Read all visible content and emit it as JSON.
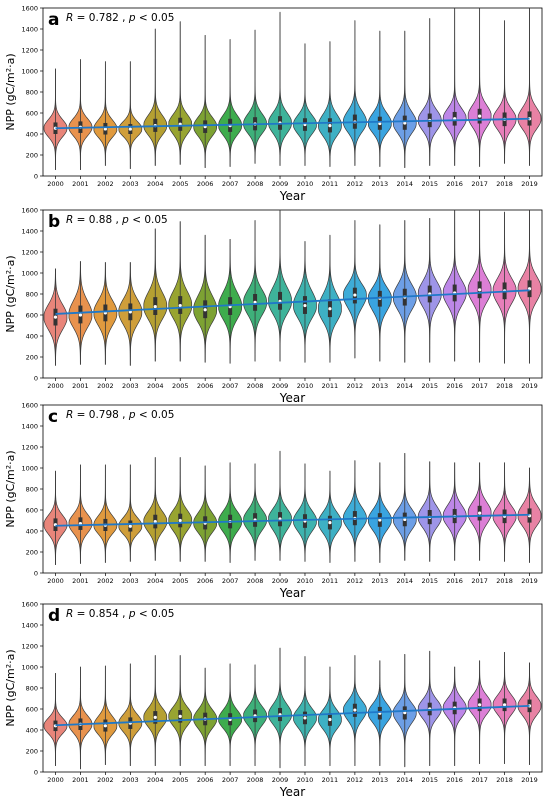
{
  "chart_data": [
    {
      "type": "violin",
      "panel_label": "a",
      "stat": {
        "r_prefix": "R",
        "r_value": "= 0.782 ,",
        "p_prefix": "p",
        "p_value": "< 0.05"
      },
      "xlabel": "Year",
      "ylabel": "NPP (gC/m²·a)",
      "ylim": [
        0,
        1600
      ],
      "yticks": [
        0,
        200,
        400,
        600,
        800,
        1000,
        1200,
        1400,
        1600
      ],
      "categories": [
        "2000",
        "2001",
        "2002",
        "2003",
        "2004",
        "2005",
        "2006",
        "2007",
        "2008",
        "2009",
        "2010",
        "2011",
        "2012",
        "2013",
        "2014",
        "2015",
        "2016",
        "2017",
        "2018",
        "2019"
      ],
      "colors": [
        "#e8857a",
        "#e8924e",
        "#e09a3e",
        "#cf9e3a",
        "#b5a032",
        "#98a431",
        "#7da233",
        "#3eac4d",
        "#3eb07a",
        "#3eb39a",
        "#3eb3af",
        "#3eb0c4",
        "#3eacd8",
        "#3aa4e0",
        "#6d9fe6",
        "#9e95e8",
        "#bd87e8",
        "#dc7fd6",
        "#e77fba",
        "#e882a4"
      ],
      "medians": [
        455,
        465,
        448,
        447,
        480,
        493,
        470,
        480,
        495,
        505,
        490,
        480,
        515,
        500,
        505,
        530,
        545,
        570,
        540,
        545
      ],
      "q1": [
        400,
        410,
        395,
        400,
        420,
        430,
        410,
        420,
        435,
        440,
        430,
        415,
        450,
        440,
        440,
        465,
        480,
        500,
        475,
        480
      ],
      "q3": [
        510,
        520,
        505,
        495,
        545,
        555,
        530,
        545,
        560,
        570,
        550,
        550,
        585,
        565,
        575,
        595,
        610,
        640,
        605,
        615
      ],
      "mins": [
        60,
        60,
        100,
        70,
        100,
        110,
        80,
        90,
        120,
        100,
        100,
        90,
        100,
        90,
        80,
        100,
        100,
        90,
        120,
        100
      ],
      "maxs": [
        1020,
        1110,
        1090,
        1090,
        1400,
        1470,
        1340,
        1300,
        1390,
        1560,
        1260,
        1280,
        1480,
        1380,
        1380,
        1500,
        1600,
        1600,
        1480,
        1600
      ],
      "trend": {
        "start": 455,
        "end": 545
      }
    },
    {
      "type": "violin",
      "panel_label": "b",
      "stat": {
        "r_prefix": "R",
        "r_value": "= 0.88 ,",
        "p_prefix": "p",
        "p_value": "< 0.05"
      },
      "xlabel": "Year",
      "ylabel": "NPP (gC/m²·a)",
      "ylim": [
        0,
        1600
      ],
      "yticks": [
        0,
        200,
        400,
        600,
        800,
        1000,
        1200,
        1400,
        1600
      ],
      "categories": [
        "2000",
        "2001",
        "2002",
        "2003",
        "2004",
        "2005",
        "2006",
        "2007",
        "2008",
        "2009",
        "2010",
        "2011",
        "2012",
        "2013",
        "2014",
        "2015",
        "2016",
        "2017",
        "2018",
        "2019"
      ],
      "colors": [
        "#e8857a",
        "#e8924e",
        "#e09a3e",
        "#cf9e3a",
        "#b5a032",
        "#98a431",
        "#7da233",
        "#3eac4d",
        "#3eb07a",
        "#3eb39a",
        "#3eb3af",
        "#3eb0c4",
        "#3eacd8",
        "#3aa4e0",
        "#6d9fe6",
        "#9e95e8",
        "#bd87e8",
        "#dc7fd6",
        "#e77fba",
        "#e882a4"
      ],
      "medians": [
        580,
        600,
        620,
        630,
        680,
        690,
        650,
        680,
        720,
        730,
        690,
        660,
        790,
        760,
        770,
        800,
        810,
        840,
        830,
        850
      ],
      "q1": [
        500,
        520,
        540,
        550,
        600,
        610,
        570,
        600,
        640,
        650,
        610,
        580,
        710,
        680,
        690,
        720,
        730,
        760,
        750,
        770
      ],
      "q3": [
        660,
        690,
        700,
        710,
        770,
        780,
        740,
        770,
        800,
        820,
        780,
        750,
        860,
        830,
        850,
        880,
        890,
        920,
        910,
        930
      ],
      "mins": [
        120,
        130,
        130,
        120,
        160,
        160,
        150,
        140,
        160,
        160,
        150,
        150,
        190,
        160,
        150,
        150,
        160,
        150,
        140,
        140
      ],
      "maxs": [
        1040,
        1110,
        1100,
        1100,
        1420,
        1490,
        1360,
        1320,
        1500,
        1600,
        1300,
        1360,
        1500,
        1460,
        1500,
        1520,
        1600,
        1600,
        1580,
        1600
      ],
      "trend": {
        "start": 610,
        "end": 835
      }
    },
    {
      "type": "violin",
      "panel_label": "c",
      "stat": {
        "r_prefix": "R",
        "r_value": "= 0.798 ,",
        "p_prefix": "p",
        "p_value": "< 0.05"
      },
      "xlabel": "Year",
      "ylabel": "NPP (gC/m²·a)",
      "ylim": [
        0,
        1600
      ],
      "yticks": [
        0,
        200,
        400,
        600,
        800,
        1000,
        1200,
        1400,
        1600
      ],
      "categories": [
        "2000",
        "2001",
        "2002",
        "2003",
        "2004",
        "2005",
        "2006",
        "2007",
        "2008",
        "2009",
        "2010",
        "2011",
        "2012",
        "2013",
        "2014",
        "2015",
        "2016",
        "2017",
        "2018",
        "2019"
      ],
      "colors": [
        "#e8857a",
        "#e8924e",
        "#e09a3e",
        "#cf9e3a",
        "#b5a032",
        "#98a431",
        "#7da233",
        "#3eac4d",
        "#3eb07a",
        "#3eb39a",
        "#3eb3af",
        "#3eb0c4",
        "#3eacd8",
        "#3aa4e0",
        "#6d9fe6",
        "#9e95e8",
        "#bd87e8",
        "#dc7fd6",
        "#e77fba",
        "#e882a4"
      ],
      "medians": [
        460,
        470,
        455,
        445,
        490,
        500,
        475,
        490,
        505,
        515,
        495,
        480,
        520,
        505,
        510,
        530,
        540,
        570,
        540,
        545
      ],
      "q1": [
        400,
        410,
        400,
        395,
        425,
        435,
        415,
        425,
        440,
        445,
        430,
        415,
        455,
        440,
        445,
        465,
        475,
        500,
        475,
        480
      ],
      "q3": [
        520,
        530,
        515,
        500,
        555,
        565,
        540,
        555,
        570,
        580,
        560,
        545,
        590,
        570,
        575,
        600,
        610,
        640,
        605,
        615
      ],
      "mins": [
        80,
        90,
        100,
        110,
        120,
        110,
        110,
        100,
        120,
        120,
        110,
        100,
        110,
        100,
        120,
        110,
        120,
        120,
        110,
        100
      ],
      "maxs": [
        970,
        1030,
        1030,
        1030,
        1100,
        1100,
        1020,
        1050,
        1040,
        1160,
        1040,
        970,
        1070,
        1050,
        1140,
        1060,
        1050,
        1050,
        1050,
        1000
      ],
      "trend": {
        "start": 450,
        "end": 555
      }
    },
    {
      "type": "violin",
      "panel_label": "d",
      "stat": {
        "r_prefix": "R",
        "r_value": "= 0.854 ,",
        "p_prefix": "p",
        "p_value": "< 0.05"
      },
      "xlabel": "Year",
      "ylabel": "NPP (gC/m²·a)",
      "ylim": [
        0,
        1600
      ],
      "yticks": [
        0,
        200,
        400,
        600,
        800,
        1000,
        1200,
        1400,
        1600
      ],
      "categories": [
        "2000",
        "2001",
        "2002",
        "2003",
        "2004",
        "2005",
        "2006",
        "2007",
        "2008",
        "2009",
        "2010",
        "2011",
        "2012",
        "2013",
        "2014",
        "2015",
        "2016",
        "2017",
        "2018",
        "2019"
      ],
      "colors": [
        "#e8857a",
        "#e8924e",
        "#e09a3e",
        "#cf9e3a",
        "#b5a032",
        "#98a431",
        "#7da233",
        "#3eac4d",
        "#3eb07a",
        "#3eb39a",
        "#3eb3af",
        "#3eb0c4",
        "#3eacd8",
        "#3aa4e0",
        "#6d9fe6",
        "#9e95e8",
        "#bd87e8",
        "#dc7fd6",
        "#e77fba",
        "#e882a4"
      ],
      "medians": [
        440,
        455,
        440,
        465,
        520,
        530,
        505,
        500,
        535,
        545,
        515,
        500,
        590,
        560,
        565,
        600,
        610,
        640,
        640,
        630
      ],
      "q1": [
        390,
        400,
        385,
        410,
        460,
        470,
        445,
        445,
        475,
        485,
        455,
        440,
        525,
        500,
        500,
        540,
        550,
        580,
        580,
        570
      ],
      "q3": [
        490,
        510,
        500,
        520,
        580,
        590,
        565,
        560,
        595,
        610,
        575,
        560,
        650,
        620,
        625,
        660,
        670,
        700,
        700,
        690
      ],
      "mins": [
        60,
        30,
        70,
        60,
        60,
        60,
        60,
        60,
        60,
        40,
        60,
        60,
        60,
        60,
        50,
        60,
        60,
        80,
        80,
        70
      ],
      "maxs": [
        940,
        1000,
        1010,
        1030,
        1110,
        1110,
        990,
        1030,
        1020,
        1180,
        1100,
        1000,
        1110,
        1060,
        1120,
        1150,
        1000,
        1060,
        1140,
        1040
      ],
      "trend": {
        "start": 445,
        "end": 630
      }
    }
  ]
}
